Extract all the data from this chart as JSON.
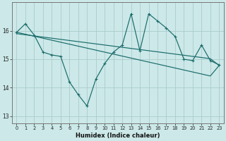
{
  "xlabel": "Humidex (Indice chaleur)",
  "background_color": "#cce8e8",
  "grid_color": "#aacccc",
  "line_color": "#1a6b6b",
  "xlim": [
    -0.5,
    23.5
  ],
  "ylim": [
    12.75,
    17.0
  ],
  "yticks": [
    13,
    14,
    15,
    16
  ],
  "xtick_labels": [
    "0",
    "1",
    "2",
    "3",
    "4",
    "5",
    "6",
    "7",
    "8",
    "9",
    "10",
    "11",
    "12",
    "13",
    "14",
    "15",
    "16",
    "17",
    "18",
    "19",
    "20",
    "21",
    "22",
    "23"
  ],
  "series1_x": [
    0,
    1,
    2,
    3,
    4,
    5,
    6,
    7,
    8,
    9,
    10,
    11,
    12,
    13,
    14,
    15,
    16,
    17,
    18,
    19,
    20,
    21,
    22,
    23
  ],
  "series1_y": [
    15.95,
    16.25,
    15.85,
    15.25,
    15.15,
    15.1,
    14.2,
    13.75,
    13.35,
    14.3,
    14.85,
    15.25,
    15.5,
    16.6,
    15.3,
    16.6,
    16.35,
    16.1,
    15.8,
    15.0,
    14.95,
    15.5,
    14.95,
    14.8
  ],
  "series2_x": [
    0,
    1,
    2,
    3,
    4,
    5,
    6,
    7,
    8,
    9,
    10,
    11,
    12,
    13,
    14,
    15,
    16,
    17,
    18,
    19,
    20,
    21,
    22,
    23
  ],
  "series2_y": [
    15.95,
    15.88,
    15.81,
    15.74,
    15.67,
    15.6,
    15.53,
    15.46,
    15.39,
    15.32,
    15.25,
    15.18,
    15.11,
    15.04,
    14.97,
    14.9,
    14.83,
    14.76,
    14.69,
    14.62,
    14.55,
    14.48,
    14.41,
    14.78
  ],
  "series3_x": [
    0,
    1,
    2,
    3,
    4,
    5,
    6,
    7,
    8,
    9,
    10,
    11,
    12,
    13,
    14,
    15,
    16,
    17,
    18,
    19,
    20,
    21,
    22,
    23
  ],
  "series3_y": [
    15.9,
    15.86,
    15.82,
    15.78,
    15.74,
    15.7,
    15.66,
    15.62,
    15.58,
    15.54,
    15.5,
    15.46,
    15.42,
    15.38,
    15.34,
    15.3,
    15.26,
    15.22,
    15.18,
    15.14,
    15.1,
    15.06,
    15.02,
    14.78
  ]
}
